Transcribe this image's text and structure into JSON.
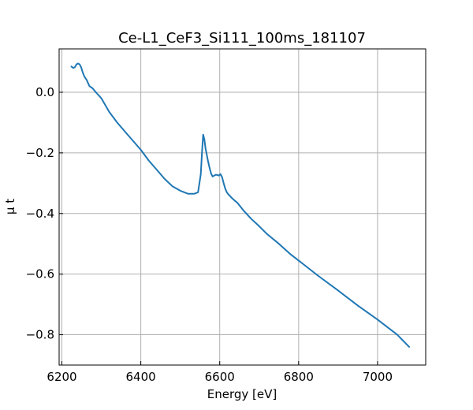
{
  "chart_data": {
    "type": "line",
    "title": "Ce-L1_CeF3_Si111_100ms_181107",
    "xlabel": "Energy [eV]",
    "ylabel": "μ t",
    "xlim": [
      6193,
      7122
    ],
    "ylim": [
      -0.9,
      0.143
    ],
    "xticks": [
      6200,
      6400,
      6600,
      6800,
      7000
    ],
    "xtick_labels": [
      "6200",
      "6400",
      "6600",
      "6800",
      "7000"
    ],
    "yticks": [
      0.0,
      -0.2,
      -0.4,
      -0.6,
      -0.8
    ],
    "ytick_labels": [
      "0.0",
      "−0.2",
      "−0.4",
      "−0.6",
      "−0.8"
    ],
    "grid": true,
    "colors": {
      "line": "#1f77b4",
      "grid": "#b0b0b0",
      "axes": "#000000"
    },
    "series": [
      {
        "x": [
          6224,
          6229,
          6233,
          6237,
          6241,
          6245,
          6249,
          6253,
          6257,
          6263,
          6270,
          6278,
          6286,
          6300,
          6320,
          6340,
          6360,
          6380,
          6400,
          6420,
          6440,
          6460,
          6480,
          6500,
          6520,
          6535,
          6545,
          6548,
          6552,
          6555,
          6558,
          6561,
          6564,
          6567,
          6570,
          6574,
          6578,
          6582,
          6586,
          6590,
          6594,
          6598,
          6602,
          6606,
          6610,
          6614,
          6618,
          6622,
          6626,
          6630,
          6636,
          6645,
          6660,
          6680,
          6700,
          6720,
          6750,
          6780,
          6800,
          6850,
          6900,
          6950,
          7000,
          7050,
          7080
        ],
        "y": [
          0.085,
          0.08,
          0.083,
          0.092,
          0.095,
          0.092,
          0.082,
          0.065,
          0.052,
          0.04,
          0.02,
          0.013,
          0.0,
          -0.02,
          -0.065,
          -0.1,
          -0.13,
          -0.16,
          -0.19,
          -0.225,
          -0.255,
          -0.285,
          -0.31,
          -0.325,
          -0.335,
          -0.335,
          -0.33,
          -0.305,
          -0.27,
          -0.2,
          -0.14,
          -0.155,
          -0.185,
          -0.205,
          -0.225,
          -0.248,
          -0.268,
          -0.278,
          -0.275,
          -0.272,
          -0.273,
          -0.275,
          -0.27,
          -0.28,
          -0.3,
          -0.318,
          -0.33,
          -0.337,
          -0.342,
          -0.348,
          -0.355,
          -0.365,
          -0.39,
          -0.418,
          -0.442,
          -0.468,
          -0.5,
          -0.535,
          -0.555,
          -0.606,
          -0.654,
          -0.704,
          -0.75,
          -0.8,
          -0.84
        ]
      }
    ]
  }
}
